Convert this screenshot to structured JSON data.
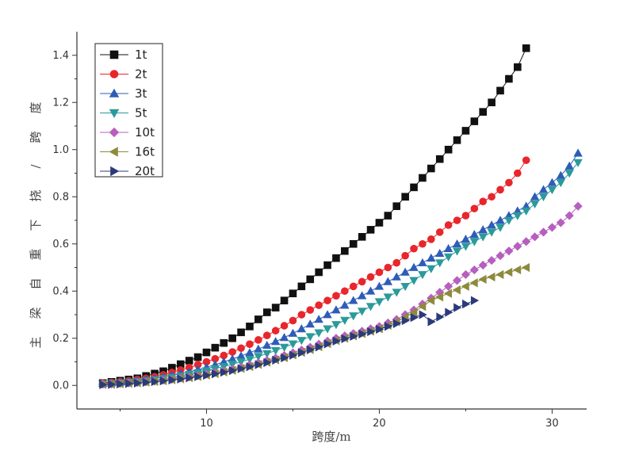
{
  "chart_data": {
    "type": "line",
    "xlabel": "跨度/m",
    "ylabel": "主梁自重下挠/跨度",
    "xlim": [
      2.5,
      32
    ],
    "ylim": [
      -0.1,
      1.5
    ],
    "xticks": [
      10,
      20,
      30
    ],
    "yticks": [
      0.0,
      0.2,
      0.4,
      0.6,
      0.8,
      1.0,
      1.2,
      1.4
    ],
    "grid": false,
    "legend_position": "top-left",
    "series": [
      {
        "name": "1t",
        "marker": "square",
        "color": "#111111",
        "x": [
          4.0,
          4.5,
          5.0,
          5.5,
          6.0,
          6.5,
          7.0,
          7.5,
          8.0,
          8.5,
          9.0,
          9.5,
          10.0,
          10.5,
          11.0,
          11.5,
          12.0,
          12.5,
          13.0,
          13.5,
          14.0,
          14.5,
          15.0,
          15.5,
          16.0,
          16.5,
          17.0,
          17.5,
          18.0,
          18.5,
          19.0,
          19.5,
          20.0,
          20.5,
          21.0,
          21.5,
          22.0,
          22.5,
          23.0,
          23.5,
          24.0,
          24.5,
          25.0,
          25.5,
          26.0,
          26.5,
          27.0,
          27.5,
          28.0,
          28.5
        ],
        "y": [
          0.01,
          0.015,
          0.02,
          0.025,
          0.03,
          0.04,
          0.05,
          0.06,
          0.075,
          0.09,
          0.105,
          0.12,
          0.14,
          0.16,
          0.18,
          0.2,
          0.225,
          0.25,
          0.28,
          0.31,
          0.33,
          0.36,
          0.39,
          0.42,
          0.45,
          0.48,
          0.51,
          0.54,
          0.57,
          0.6,
          0.63,
          0.66,
          0.69,
          0.72,
          0.76,
          0.8,
          0.84,
          0.88,
          0.92,
          0.96,
          1.0,
          1.04,
          1.08,
          1.12,
          1.16,
          1.2,
          1.25,
          1.3,
          1.35,
          1.43
        ]
      },
      {
        "name": "2t",
        "marker": "circle",
        "color": "#e8262b",
        "x": [
          4.0,
          4.5,
          5.0,
          5.5,
          6.0,
          6.5,
          7.0,
          7.5,
          8.0,
          8.5,
          9.0,
          9.5,
          10.0,
          10.5,
          11.0,
          11.5,
          12.0,
          12.5,
          13.0,
          13.5,
          14.0,
          14.5,
          15.0,
          15.5,
          16.0,
          16.5,
          17.0,
          17.5,
          18.0,
          18.5,
          19.0,
          19.5,
          20.0,
          20.5,
          21.0,
          21.5,
          22.0,
          22.5,
          23.0,
          23.5,
          24.0,
          24.5,
          25.0,
          25.5,
          26.0,
          26.5,
          27.0,
          27.5,
          28.0,
          28.5
        ],
        "y": [
          0.01,
          0.013,
          0.016,
          0.02,
          0.025,
          0.03,
          0.037,
          0.045,
          0.055,
          0.065,
          0.076,
          0.088,
          0.1,
          0.113,
          0.127,
          0.142,
          0.158,
          0.175,
          0.193,
          0.212,
          0.232,
          0.253,
          0.275,
          0.3,
          0.32,
          0.34,
          0.36,
          0.38,
          0.4,
          0.42,
          0.44,
          0.46,
          0.48,
          0.5,
          0.52,
          0.55,
          0.58,
          0.6,
          0.62,
          0.65,
          0.68,
          0.7,
          0.72,
          0.75,
          0.78,
          0.8,
          0.83,
          0.86,
          0.9,
          0.955
        ]
      },
      {
        "name": "3t",
        "marker": "triangle-up",
        "color": "#2f5cb8",
        "x": [
          4.0,
          4.5,
          5.0,
          5.5,
          6.0,
          6.5,
          7.0,
          7.5,
          8.0,
          8.5,
          9.0,
          9.5,
          10.0,
          10.5,
          11.0,
          11.5,
          12.0,
          12.5,
          13.0,
          13.5,
          14.0,
          14.5,
          15.0,
          15.5,
          16.0,
          16.5,
          17.0,
          17.5,
          18.0,
          18.5,
          19.0,
          19.5,
          20.0,
          20.5,
          21.0,
          21.5,
          22.0,
          22.5,
          23.0,
          23.5,
          24.0,
          24.5,
          25.0,
          25.5,
          26.0,
          26.5,
          27.0,
          27.5,
          28.0,
          28.5,
          29.0,
          29.5,
          30.0,
          30.5,
          31.0,
          31.5
        ],
        "y": [
          0.008,
          0.01,
          0.013,
          0.016,
          0.02,
          0.025,
          0.03,
          0.036,
          0.043,
          0.05,
          0.058,
          0.067,
          0.077,
          0.088,
          0.1,
          0.112,
          0.125,
          0.139,
          0.154,
          0.17,
          0.186,
          0.203,
          0.221,
          0.24,
          0.26,
          0.28,
          0.3,
          0.32,
          0.34,
          0.36,
          0.38,
          0.4,
          0.42,
          0.44,
          0.46,
          0.48,
          0.5,
          0.52,
          0.54,
          0.56,
          0.58,
          0.6,
          0.62,
          0.64,
          0.66,
          0.68,
          0.7,
          0.72,
          0.74,
          0.76,
          0.8,
          0.83,
          0.86,
          0.89,
          0.93,
          0.985
        ]
      },
      {
        "name": "5t",
        "marker": "triangle-down",
        "color": "#2a9a9a",
        "x": [
          4.0,
          4.5,
          5.0,
          5.5,
          6.0,
          6.5,
          7.0,
          7.5,
          8.0,
          8.5,
          9.0,
          9.5,
          10.0,
          10.5,
          11.0,
          11.5,
          12.0,
          12.5,
          13.0,
          13.5,
          14.0,
          14.5,
          15.0,
          15.5,
          16.0,
          16.5,
          17.0,
          17.5,
          18.0,
          18.5,
          19.0,
          19.5,
          20.0,
          20.5,
          21.0,
          21.5,
          22.0,
          22.5,
          23.0,
          23.5,
          24.0,
          24.5,
          25.0,
          25.5,
          26.0,
          26.5,
          27.0,
          27.5,
          28.0,
          28.5,
          29.0,
          29.5,
          30.0,
          30.5,
          31.0,
          31.5
        ],
        "y": [
          0.006,
          0.008,
          0.01,
          0.013,
          0.016,
          0.02,
          0.024,
          0.029,
          0.034,
          0.04,
          0.047,
          0.054,
          0.062,
          0.071,
          0.08,
          0.09,
          0.1,
          0.111,
          0.123,
          0.135,
          0.148,
          0.162,
          0.176,
          0.191,
          0.207,
          0.223,
          0.24,
          0.258,
          0.276,
          0.295,
          0.315,
          0.335,
          0.355,
          0.375,
          0.395,
          0.42,
          0.445,
          0.47,
          0.495,
          0.52,
          0.545,
          0.57,
          0.59,
          0.61,
          0.63,
          0.65,
          0.67,
          0.7,
          0.72,
          0.74,
          0.77,
          0.8,
          0.83,
          0.86,
          0.9,
          0.945
        ]
      },
      {
        "name": "10t",
        "marker": "diamond",
        "color": "#b65fbf",
        "x": [
          4.0,
          4.5,
          5.0,
          5.5,
          6.0,
          6.5,
          7.0,
          7.5,
          8.0,
          8.5,
          9.0,
          9.5,
          10.0,
          10.5,
          11.0,
          11.5,
          12.0,
          12.5,
          13.0,
          13.5,
          14.0,
          14.5,
          15.0,
          15.5,
          16.0,
          16.5,
          17.0,
          17.5,
          18.0,
          18.5,
          19.0,
          19.5,
          20.0,
          20.5,
          21.0,
          21.5,
          22.0,
          22.5,
          23.0,
          23.5,
          24.0,
          24.5,
          25.0,
          25.5,
          26.0,
          26.5,
          27.0,
          27.5,
          28.0,
          28.5,
          29.0,
          29.5,
          30.0,
          30.5,
          31.0,
          31.5
        ],
        "y": [
          0.005,
          0.006,
          0.008,
          0.01,
          0.012,
          0.015,
          0.018,
          0.022,
          0.026,
          0.031,
          0.036,
          0.042,
          0.048,
          0.055,
          0.062,
          0.07,
          0.078,
          0.087,
          0.096,
          0.106,
          0.116,
          0.127,
          0.138,
          0.15,
          0.162,
          0.175,
          0.188,
          0.2,
          0.21,
          0.22,
          0.23,
          0.24,
          0.25,
          0.265,
          0.28,
          0.3,
          0.32,
          0.345,
          0.37,
          0.395,
          0.42,
          0.445,
          0.47,
          0.49,
          0.51,
          0.53,
          0.55,
          0.57,
          0.59,
          0.61,
          0.63,
          0.65,
          0.67,
          0.69,
          0.72,
          0.76
        ]
      },
      {
        "name": "16t",
        "marker": "triangle-left",
        "color": "#8d8a3c",
        "x": [
          4.0,
          4.5,
          5.0,
          5.5,
          6.0,
          6.5,
          7.0,
          7.5,
          8.0,
          8.5,
          9.0,
          9.5,
          10.0,
          10.5,
          11.0,
          11.5,
          12.0,
          12.5,
          13.0,
          13.5,
          14.0,
          14.5,
          15.0,
          15.5,
          16.0,
          16.5,
          17.0,
          17.5,
          18.0,
          18.5,
          19.0,
          19.5,
          20.0,
          20.5,
          21.0,
          21.5,
          22.0,
          22.5,
          23.0,
          23.5,
          24.0,
          24.5,
          25.0,
          25.5,
          26.0,
          26.5,
          27.0,
          27.5,
          28.0,
          28.5
        ],
        "y": [
          0.004,
          0.005,
          0.007,
          0.009,
          0.011,
          0.014,
          0.017,
          0.02,
          0.024,
          0.028,
          0.033,
          0.038,
          0.044,
          0.05,
          0.057,
          0.064,
          0.072,
          0.08,
          0.089,
          0.098,
          0.108,
          0.118,
          0.129,
          0.14,
          0.152,
          0.164,
          0.177,
          0.19,
          0.2,
          0.21,
          0.22,
          0.23,
          0.24,
          0.255,
          0.27,
          0.29,
          0.31,
          0.335,
          0.36,
          0.375,
          0.39,
          0.405,
          0.42,
          0.435,
          0.45,
          0.46,
          0.47,
          0.48,
          0.49,
          0.5
        ]
      },
      {
        "name": "20t",
        "marker": "triangle-right",
        "color": "#2b3a7a",
        "x": [
          4.0,
          4.5,
          5.0,
          5.5,
          6.0,
          6.5,
          7.0,
          7.5,
          8.0,
          8.5,
          9.0,
          9.5,
          10.0,
          10.5,
          11.0,
          11.5,
          12.0,
          12.5,
          13.0,
          13.5,
          14.0,
          14.5,
          15.0,
          15.5,
          16.0,
          16.5,
          17.0,
          17.5,
          18.0,
          18.5,
          19.0,
          19.5,
          20.0,
          20.5,
          21.0,
          21.5,
          22.0,
          22.5,
          23.0,
          23.5,
          24.0,
          24.5,
          25.0,
          25.5
        ],
        "y": [
          0.003,
          0.004,
          0.006,
          0.008,
          0.01,
          0.013,
          0.016,
          0.019,
          0.023,
          0.027,
          0.032,
          0.037,
          0.043,
          0.049,
          0.056,
          0.063,
          0.071,
          0.079,
          0.088,
          0.097,
          0.107,
          0.117,
          0.128,
          0.139,
          0.151,
          0.163,
          0.176,
          0.188,
          0.198,
          0.208,
          0.218,
          0.228,
          0.238,
          0.25,
          0.262,
          0.275,
          0.288,
          0.3,
          0.27,
          0.29,
          0.31,
          0.33,
          0.345,
          0.36
        ]
      }
    ]
  }
}
